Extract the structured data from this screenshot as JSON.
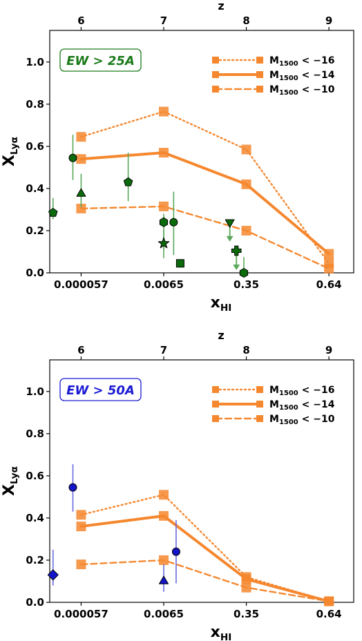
{
  "chart_data": [
    {
      "type": "scatter",
      "badge": "EW > 25A",
      "badge_color": "#1a7a1a",
      "xlabel": "x_HI",
      "ylabel": "X_Lyα",
      "top_xlabel": "z",
      "ylim": [
        0,
        1.15
      ],
      "yticks": [
        "0.0",
        "0.2",
        "0.4",
        "0.6",
        "0.8",
        "1.0"
      ],
      "xtick_labels": [
        "0.000057",
        "0.0065",
        "0.35",
        "0.64"
      ],
      "top_tick_labels": [
        "6",
        "7",
        "8",
        "9"
      ],
      "x_slots": {
        "0.000057": 6,
        "0.0065": 7,
        "0.35": 8,
        "0.64": 9
      },
      "xlim": [
        5.62,
        9.3
      ],
      "legend": {
        "position": "top-right"
      },
      "model_color": "#f5872e",
      "series": [
        {
          "name": "M1500 < −16",
          "linestyle": "dotted",
          "x": [
            6,
            7,
            8,
            9
          ],
          "y": [
            0.645,
            0.765,
            0.585,
            0.045
          ]
        },
        {
          "name": "M1500 < −14",
          "linestyle": "solid",
          "x": [
            6,
            7,
            8,
            9
          ],
          "y": [
            0.54,
            0.57,
            0.42,
            0.09
          ]
        },
        {
          "name": "M1500 < −10",
          "linestyle": "dashed",
          "x": [
            6,
            7,
            8,
            9
          ],
          "y": [
            0.305,
            0.315,
            0.2,
            0.02
          ]
        }
      ],
      "observations": {
        "color": "#0b6b0b",
        "points": [
          {
            "x": 5.66,
            "y": 0.285,
            "lo": 0.255,
            "hi": 0.355,
            "marker": "pentagon"
          },
          {
            "x": 5.9,
            "y": 0.545,
            "lo": 0.44,
            "hi": 0.655,
            "marker": "circle"
          },
          {
            "x": 6.0,
            "y": 0.375,
            "lo": 0.31,
            "hi": 0.47,
            "marker": "triangle-up"
          },
          {
            "x": 6.57,
            "y": 0.43,
            "lo": 0.34,
            "hi": 0.57,
            "marker": "pentagon"
          },
          {
            "x": 7.0,
            "y": 0.24,
            "lo": 0.11,
            "hi": 0.28,
            "marker": "hexagon"
          },
          {
            "x": 7.0,
            "y": 0.14,
            "lo": 0.07,
            "hi": 0.2,
            "marker": "star"
          },
          {
            "x": 7.12,
            "y": 0.24,
            "lo": 0.085,
            "hi": 0.385,
            "marker": "circle"
          },
          {
            "x": 7.2,
            "y": 0.045,
            "marker": "square"
          },
          {
            "x": 7.8,
            "y": 0.24,
            "upper_limit": true,
            "marker": "triangle-down"
          },
          {
            "x": 7.88,
            "y": 0.105,
            "upper_limit": true,
            "marker": "plus"
          },
          {
            "x": 7.97,
            "y": 0.0,
            "hi": 0.075,
            "marker": "hexagon"
          }
        ]
      }
    },
    {
      "type": "scatter",
      "badge": "EW > 50A",
      "badge_color": "#1a1ad4",
      "xlabel": "x_HI",
      "ylabel": "X_Lyα",
      "top_xlabel": "z",
      "ylim": [
        0,
        1.15
      ],
      "yticks": [
        "0.0",
        "0.2",
        "0.4",
        "0.6",
        "0.8",
        "1.0"
      ],
      "xtick_labels": [
        "0.000057",
        "0.0065",
        "0.35",
        "0.64"
      ],
      "top_tick_labels": [
        "6",
        "7",
        "8",
        "9"
      ],
      "x_slots": {
        "0.000057": 6,
        "0.0065": 7,
        "0.35": 8,
        "0.64": 9
      },
      "xlim": [
        5.62,
        9.3
      ],
      "legend": {
        "position": "top-right"
      },
      "model_color": "#f5872e",
      "series": [
        {
          "name": "M1500 < −16",
          "linestyle": "dotted",
          "x": [
            6,
            7,
            8,
            9
          ],
          "y": [
            0.415,
            0.51,
            0.12,
            0.005
          ]
        },
        {
          "name": "M1500 < −14",
          "linestyle": "solid",
          "x": [
            6,
            7,
            8,
            9
          ],
          "y": [
            0.36,
            0.41,
            0.11,
            0.005
          ]
        },
        {
          "name": "M1500 < −10",
          "linestyle": "dashed",
          "x": [
            6,
            7,
            8,
            9
          ],
          "y": [
            0.18,
            0.2,
            0.07,
            0.005
          ]
        }
      ],
      "observations": {
        "color": "#1515c8",
        "points": [
          {
            "x": 5.66,
            "y": 0.13,
            "lo": 0.08,
            "hi": 0.25,
            "marker": "diamond"
          },
          {
            "x": 5.9,
            "y": 0.545,
            "lo": 0.43,
            "hi": 0.655,
            "marker": "circle"
          },
          {
            "x": 7.0,
            "y": 0.1,
            "lo": 0.05,
            "hi": 0.18,
            "marker": "triangle-up"
          },
          {
            "x": 7.15,
            "y": 0.24,
            "lo": 0.09,
            "hi": 0.39,
            "marker": "circle"
          }
        ]
      }
    }
  ]
}
